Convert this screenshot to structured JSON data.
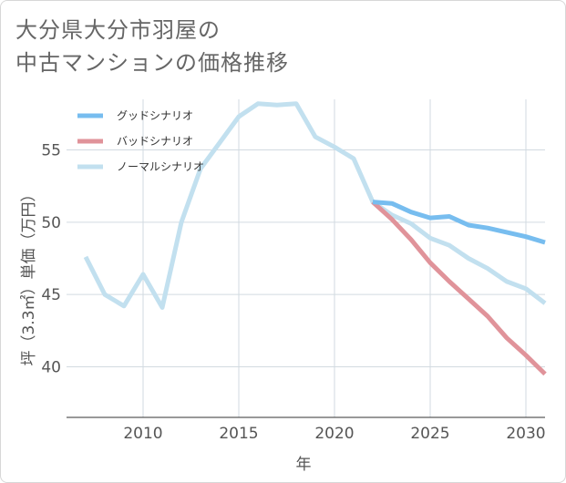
{
  "title_lines": [
    "大分県大分市羽屋の",
    "中古マンションの価格推移"
  ],
  "colors": {
    "good": "#77bdef",
    "bad": "#e0939a",
    "normal": "#c2e0ef",
    "grid": "#d2dae0",
    "text": "#555555"
  },
  "chart_data": {
    "type": "line",
    "title": "大分県大分市羽屋の中古マンションの価格推移",
    "xlabel": "年",
    "ylabel": "坪（3.3㎡）単価（万円）",
    "xlim": [
      2006,
      2031
    ],
    "ylim": [
      36.5,
      58.5
    ],
    "xticks": [
      2010,
      2015,
      2020,
      2025,
      2030
    ],
    "yticks": [
      40,
      45,
      50,
      55
    ],
    "grid": true,
    "legend_position": "top-left",
    "series": [
      {
        "key": "good",
        "name": "グッドシナリオ",
        "x": [
          2022,
          2023,
          2024,
          2025,
          2026,
          2027,
          2028,
          2029,
          2030,
          2031
        ],
        "values": [
          51.4,
          51.3,
          50.7,
          50.3,
          50.4,
          49.8,
          49.6,
          49.3,
          49.0,
          48.6
        ]
      },
      {
        "key": "bad",
        "name": "バッドシナリオ",
        "x": [
          2022,
          2023,
          2024,
          2025,
          2026,
          2027,
          2028,
          2029,
          2030,
          2031
        ],
        "values": [
          51.4,
          50.2,
          48.8,
          47.2,
          45.9,
          44.7,
          43.5,
          42.0,
          40.8,
          39.5
        ]
      },
      {
        "key": "normal",
        "name": "ノーマルシナリオ",
        "x": [
          2007,
          2008,
          2009,
          2010,
          2011,
          2012,
          2013,
          2014,
          2015,
          2016,
          2017,
          2018,
          2019,
          2020,
          2021,
          2022,
          2023,
          2024,
          2025,
          2026,
          2027,
          2028,
          2029,
          2030,
          2031
        ],
        "values": [
          47.6,
          45.0,
          44.2,
          46.4,
          44.1,
          50.0,
          53.7,
          55.5,
          57.3,
          58.2,
          58.1,
          58.2,
          55.9,
          55.2,
          54.4,
          51.4,
          50.5,
          49.9,
          48.9,
          48.4,
          47.5,
          46.8,
          45.9,
          45.4,
          44.4
        ]
      }
    ]
  }
}
